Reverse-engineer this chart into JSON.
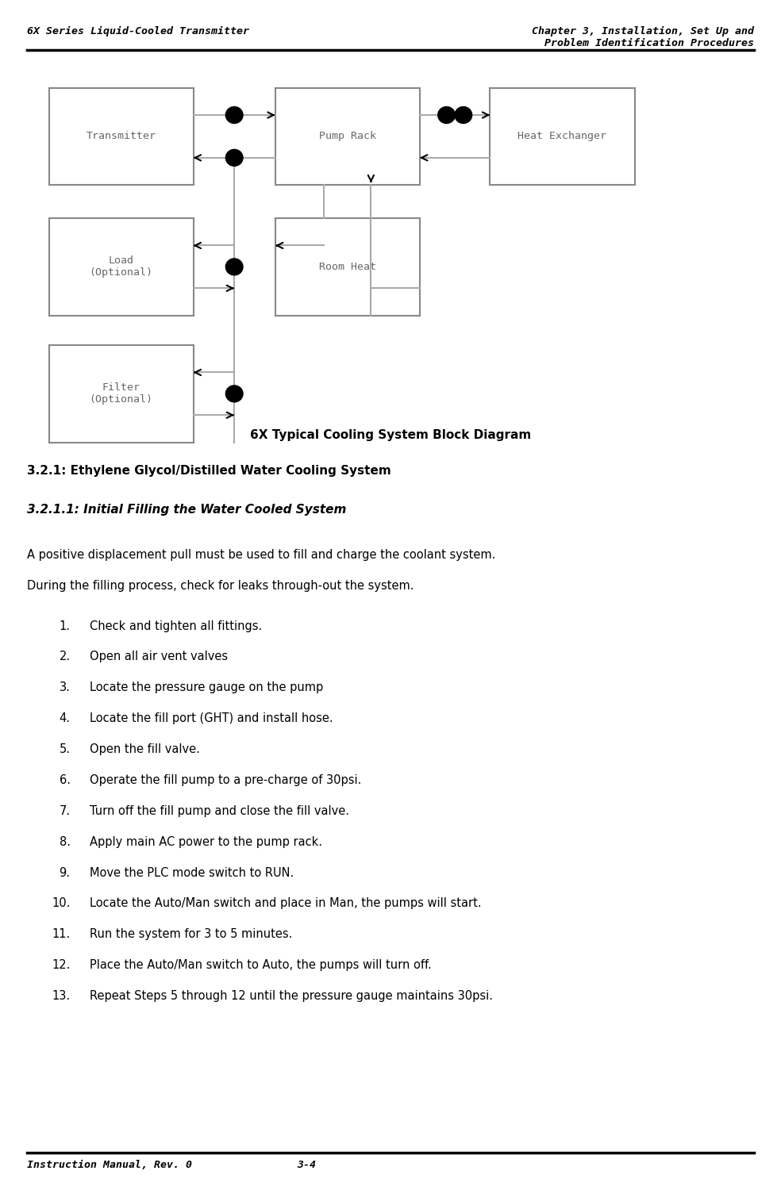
{
  "header_left": "6X Series Liquid-Cooled Transmitter",
  "header_right": "Chapter 3, Installation, Set Up and\nProblem Identification Procedures",
  "footer_left": "Instruction Manual, Rev. 0",
  "footer_right": "3-4",
  "diagram_title": "6X Typical Cooling System Block Diagram",
  "section_heading": "3.2.1: Ethylene Glycol/Distilled Water Cooling System",
  "subsection_heading": "3.2.1.1: Initial Filling the Water Cooled System",
  "intro_line1": "A positive displacement pull must be used to fill and charge the coolant system.",
  "intro_line2": "During the filling process, check for leaks through-out the system.",
  "steps": [
    "Check and tighten all fittings.",
    "Open all air vent valves",
    "Locate the pressure gauge on the pump",
    "Locate the fill port (GHT) and install hose.",
    "Open the fill valve.",
    "Operate the fill pump to a pre-charge of 30psi.",
    "Turn off the fill pump and close the fill valve.",
    "Apply main AC power to the pump rack.",
    "Move the PLC mode switch to RUN.",
    "Locate the Auto/Man switch and place in Man, the pumps will start.",
    "Run the system for 3 to 5 minutes.",
    "Place the Auto/Man switch to Auto, the pumps will turn off.",
    "Repeat Steps 5 through 12 until the pressure gauge maintains 30psi."
  ],
  "bg_color": "#ffffff",
  "text_color": "#000000",
  "box_edge_color": "#888888",
  "line_color": "#aaaaaa",
  "arrow_color": "#000000",
  "monospace_font": "DejaVu Sans Mono",
  "body_font": "DejaVu Sans"
}
